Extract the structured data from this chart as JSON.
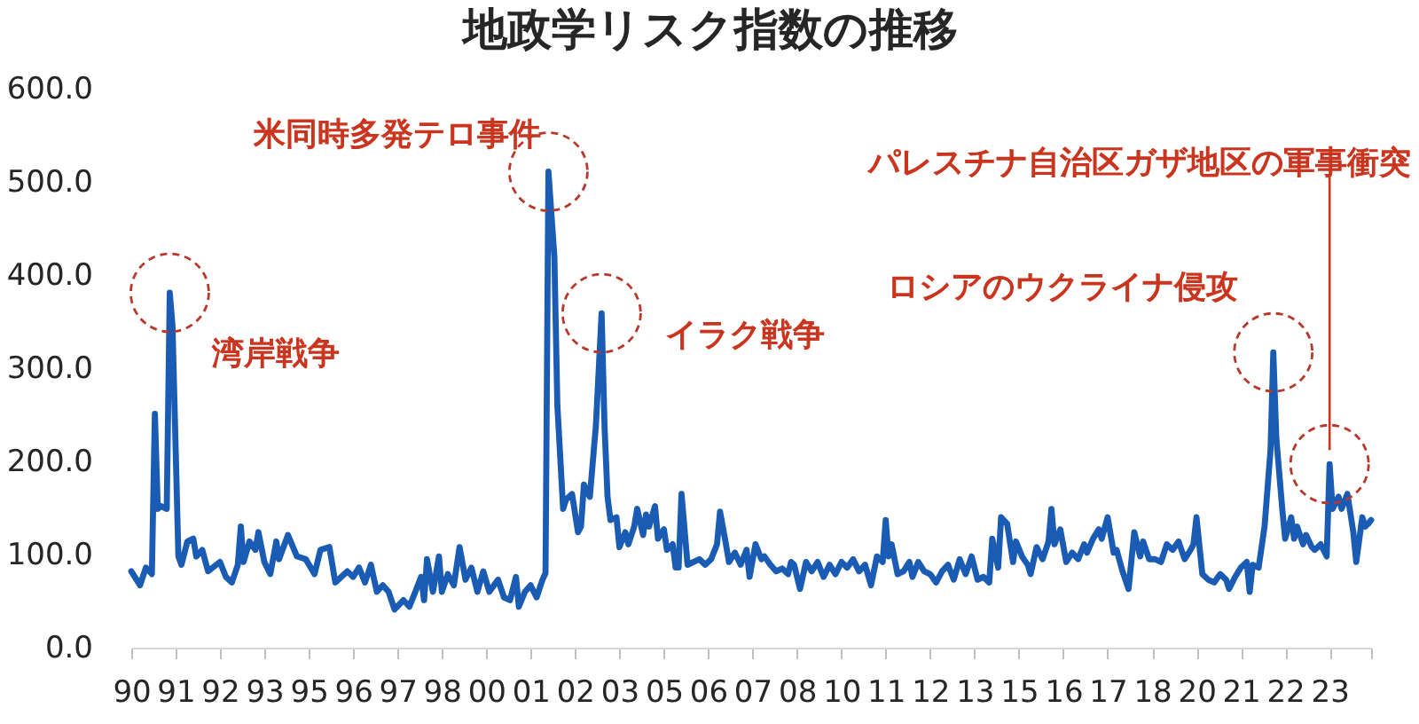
{
  "chart_data": {
    "type": "line",
    "title": "地政学リスク指数の推移",
    "color": "#1a5cb4",
    "line_style": "solid",
    "x": [
      "1990-01",
      "1990-04",
      "1990-06",
      "1990-08",
      "1990-09",
      "1990-10",
      "1990-11",
      "1991-01",
      "1991-02",
      "1991-03",
      "1991-05",
      "1991-06",
      "1991-08",
      "1991-10",
      "1991-11",
      "1992-01",
      "1992-03",
      "1992-07",
      "1992-09",
      "1992-11",
      "1993-01",
      "1993-02",
      "1993-03",
      "1993-05",
      "1993-07",
      "1993-08",
      "1993-10",
      "1993-12",
      "1994-02",
      "1994-03",
      "1994-06",
      "1994-09",
      "1994-12",
      "1995-03",
      "1995-05",
      "1995-08",
      "1995-10",
      "1995-12",
      "1996-02",
      "1996-04",
      "1996-06",
      "1996-08",
      "1996-10",
      "1996-12",
      "1997-02",
      "1997-04",
      "1997-06",
      "1997-09",
      "1997-11",
      "1998-01",
      "1998-03",
      "1998-04",
      "1998-05",
      "1998-07",
      "1998-09",
      "1998-10",
      "1998-12",
      "1999-02",
      "1999-04",
      "1999-06",
      "1999-08",
      "1999-10",
      "1999-12",
      "2000-02",
      "2000-05",
      "2000-07",
      "2000-09",
      "2000-11",
      "2000-12",
      "2001-02",
      "2001-04",
      "2001-06",
      "2001-08",
      "2001-09",
      "2001-10",
      "2001-12",
      "2002-01",
      "2002-03",
      "2002-04",
      "2002-06",
      "2002-08",
      "2002-09",
      "2002-10",
      "2002-12",
      "2003-02",
      "2003-04",
      "2003-05",
      "2003-06",
      "2003-07",
      "2003-09",
      "2003-10",
      "2003-12",
      "2004-01",
      "2004-03",
      "2004-04",
      "2004-06",
      "2004-07",
      "2004-08",
      "2004-10",
      "2004-11",
      "2005-01",
      "2005-02",
      "2005-04",
      "2005-05",
      "2005-06",
      "2005-07",
      "2005-09",
      "2005-11",
      "2006-01",
      "2006-03",
      "2006-05",
      "2006-07",
      "2006-08",
      "2006-10",
      "2006-11",
      "2007-01",
      "2007-03",
      "2007-05",
      "2007-06",
      "2007-08",
      "2007-10",
      "2007-11",
      "2008-01",
      "2008-03",
      "2008-05",
      "2008-07",
      "2008-08",
      "2008-09",
      "2008-11",
      "2009-01",
      "2009-03",
      "2009-05",
      "2009-07",
      "2009-09",
      "2009-11",
      "2010-01",
      "2010-03",
      "2010-05",
      "2010-07",
      "2010-09",
      "2010-11",
      "2011-01",
      "2011-03",
      "2011-04",
      "2011-05",
      "2011-06",
      "2011-08",
      "2011-10",
      "2011-12",
      "2012-01",
      "2012-03",
      "2012-05",
      "2012-07",
      "2012-09",
      "2012-11",
      "2013-01",
      "2013-03",
      "2013-05",
      "2013-07",
      "2013-09",
      "2013-11",
      "2014-01",
      "2014-03",
      "2014-04",
      "2014-06",
      "2014-07",
      "2014-09",
      "2014-11",
      "2014-12",
      "2015-02",
      "2015-04",
      "2015-05",
      "2015-07",
      "2015-09",
      "2015-11",
      "2015-12",
      "2016-01",
      "2016-03",
      "2016-05",
      "2016-07",
      "2016-09",
      "2016-11",
      "2016-12",
      "2017-02",
      "2017-04",
      "2017-05",
      "2017-07",
      "2017-09",
      "2017-10",
      "2017-12",
      "2018-02",
      "2018-04",
      "2018-06",
      "2018-07",
      "2018-09",
      "2018-11",
      "2019-01",
      "2019-03",
      "2019-05",
      "2019-07",
      "2019-09",
      "2019-11",
      "2019-12",
      "2020-01",
      "2020-03",
      "2020-05",
      "2020-07",
      "2020-09",
      "2020-11",
      "2020-12",
      "2021-02",
      "2021-04",
      "2021-06",
      "2021-07",
      "2021-08",
      "2021-10",
      "2021-12",
      "2022-02",
      "2022-03",
      "2022-04",
      "2022-06",
      "2022-07",
      "2022-09",
      "2022-10",
      "2022-11",
      "2023-01",
      "2023-02",
      "2023-04",
      "2023-05",
      "2023-07",
      "2023-09",
      "2023-10",
      "2023-11",
      "2024-01",
      "2024-02",
      "2024-04",
      "2024-06",
      "2024-07",
      "2024-09",
      "2024-10",
      "2024-11",
      "2024-12"
    ],
    "values": [
      82,
      67,
      86,
      79,
      251,
      149,
      152,
      149,
      381,
      346,
      98,
      89,
      114,
      117,
      98,
      105,
      82,
      92,
      76,
      70,
      89,
      130,
      92,
      114,
      105,
      124,
      92,
      79,
      114,
      95,
      121,
      98,
      95,
      79,
      105,
      108,
      70,
      76,
      82,
      76,
      86,
      70,
      89,
      60,
      67,
      60,
      41,
      51,
      44,
      60,
      76,
      51,
      95,
      60,
      98,
      60,
      79,
      67,
      108,
      73,
      86,
      60,
      82,
      60,
      73,
      54,
      51,
      76,
      44,
      60,
      67,
      54,
      73,
      80,
      511,
      420,
      260,
      149,
      159,
      165,
      124,
      130,
      175,
      162,
      238,
      359,
      238,
      162,
      137,
      140,
      108,
      124,
      111,
      130,
      149,
      121,
      143,
      130,
      152,
      117,
      127,
      105,
      111,
      86,
      86,
      165,
      89,
      92,
      95,
      89,
      95,
      111,
      146,
      111,
      92,
      102,
      89,
      105,
      76,
      111,
      95,
      98,
      89,
      82,
      85,
      79,
      92,
      89,
      63,
      92,
      82,
      92,
      76,
      89,
      79,
      92,
      86,
      95,
      82,
      89,
      67,
      98,
      92,
      137,
      98,
      111,
      79,
      82,
      92,
      76,
      92,
      82,
      79,
      70,
      82,
      89,
      73,
      95,
      79,
      98,
      73,
      76,
      70,
      117,
      86,
      140,
      133,
      92,
      114,
      98,
      89,
      79,
      108,
      95,
      114,
      149,
      111,
      127,
      92,
      102,
      95,
      111,
      102,
      117,
      127,
      117,
      140,
      102,
      105,
      82,
      63,
      124,
      98,
      114,
      95,
      95,
      92,
      111,
      105,
      114,
      95,
      105,
      111,
      140,
      79,
      73,
      70,
      79,
      73,
      63,
      76,
      86,
      92,
      60,
      89,
      86,
      130,
      213,
      317,
      225,
      149,
      117,
      140,
      117,
      130,
      111,
      121,
      108,
      105,
      111,
      98,
      197,
      149,
      162,
      149,
      165,
      124,
      92,
      140,
      130,
      133,
      137
    ],
    "xlim": [
      "1990-01",
      "2024-12"
    ],
    "xticks": [
      {
        "value": "1990-01",
        "label": "90"
      },
      {
        "value": "1991-04",
        "label": "91"
      },
      {
        "value": "1992-07",
        "label": "92"
      },
      {
        "value": "1993-10",
        "label": "93"
      },
      {
        "value": "1995-01",
        "label": "95"
      },
      {
        "value": "1996-04",
        "label": "96"
      },
      {
        "value": "1997-07",
        "label": "97"
      },
      {
        "value": "1998-10",
        "label": "98"
      },
      {
        "value": "2000-01",
        "label": "00"
      },
      {
        "value": "2001-04",
        "label": "01"
      },
      {
        "value": "2002-07",
        "label": "02"
      },
      {
        "value": "2003-10",
        "label": "03"
      },
      {
        "value": "2005-01",
        "label": "05"
      },
      {
        "value": "2006-04",
        "label": "06"
      },
      {
        "value": "2007-07",
        "label": "07"
      },
      {
        "value": "2008-10",
        "label": "08"
      },
      {
        "value": "2010-01",
        "label": "10"
      },
      {
        "value": "2011-04",
        "label": "11"
      },
      {
        "value": "2012-07",
        "label": "12"
      },
      {
        "value": "2013-10",
        "label": "13"
      },
      {
        "value": "2015-01",
        "label": "15"
      },
      {
        "value": "2016-04",
        "label": "16"
      },
      {
        "value": "2017-07",
        "label": "17"
      },
      {
        "value": "2018-10",
        "label": "18"
      },
      {
        "value": "2020-01",
        "label": "20"
      },
      {
        "value": "2021-04",
        "label": "21"
      },
      {
        "value": "2022-07",
        "label": "22"
      },
      {
        "value": "2023-10",
        "label": "23"
      },
      {
        "value": "2024-12",
        "label": null
      }
    ],
    "ylim": [
      0,
      600
    ],
    "yticks": [
      {
        "value": 0,
        "label": "0.0"
      },
      {
        "value": 100,
        "label": "100.0"
      },
      {
        "value": 200,
        "label": "200.0"
      },
      {
        "value": 300,
        "label": "300.0"
      },
      {
        "value": 400,
        "label": "400.0"
      },
      {
        "value": 500,
        "label": "500.0"
      },
      {
        "value": 600,
        "label": "600.0"
      }
    ],
    "annotations": [
      {
        "text": "湾岸戦争",
        "x": "1991-02",
        "y": 381
      },
      {
        "text": "米同時多発テロ事件",
        "x": "2001-10",
        "y": 511
      },
      {
        "text": "イラク戦争",
        "x": "2003-04",
        "y": 359
      },
      {
        "text": "ロシアのウクライナ侵攻",
        "x": "2022-03",
        "y": 317
      },
      {
        "text": "パレスチナ自治区ガザ地区の軍事衝突",
        "x": "2023-10",
        "y": 197
      }
    ]
  }
}
